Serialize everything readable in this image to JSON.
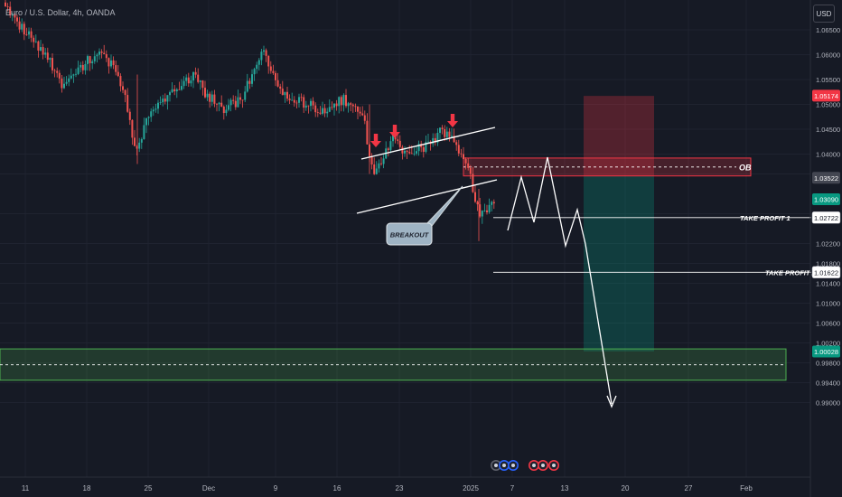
{
  "header": {
    "symbol": "Euro / U.S. Dollar, 4h, OANDA",
    "currency": "USD"
  },
  "colors": {
    "background": "#161a25",
    "grid": "#1f2330",
    "up": "#26a69a",
    "down": "#ef5350",
    "text": "#b2b5be",
    "white": "#ffffff"
  },
  "chart_data": {
    "type": "candlestick",
    "price_axis": {
      "ylim": [
        0.989,
        1.0695
      ],
      "ticks": [
        "1.06500",
        "1.06000",
        "1.05500",
        "1.05000",
        "1.04500",
        "1.04000",
        "1.03600",
        "1.02800",
        "1.02200",
        "1.01800",
        "1.01400",
        "1.01000",
        "1.00600",
        "1.00200",
        "0.99800",
        "0.99400",
        "0.99000"
      ]
    },
    "time_axis": {
      "labels": [
        "11",
        "18",
        "25",
        "Dec",
        "9",
        "16",
        "23",
        "2025",
        "7",
        "13",
        "20",
        "27",
        "Feb"
      ]
    },
    "price_labels": [
      {
        "value": "1.05174",
        "color": "#f23645"
      },
      {
        "value": "1.03522",
        "color": "#434651"
      },
      {
        "value": "1.03090",
        "color": "#089981"
      },
      {
        "value": "1.02722",
        "color": "#ffffff"
      },
      {
        "value": "1.01622",
        "color": "#ffffff"
      },
      {
        "value": "1.00028",
        "color": "#089981"
      }
    ],
    "levels": [
      {
        "label": "TAKE PROFIT 1",
        "price": 1.02722
      },
      {
        "label": "TAKE PROFIT 2",
        "price": 1.01622
      }
    ],
    "zones": [
      {
        "label": "OB",
        "top": 1.0392,
        "bottom": 1.0356,
        "mid": 1.0374,
        "color": "#f23645"
      },
      {
        "label": "",
        "top": 1.0008,
        "bottom": 0.9945,
        "mid": 0.9976,
        "color": "#4caf50"
      }
    ],
    "position": {
      "type": "short",
      "entry": 1.0356,
      "stop": 1.0517,
      "target": 1.0003
    },
    "annotations": {
      "breakout": "BREAKOUT",
      "ob": "OB"
    }
  }
}
